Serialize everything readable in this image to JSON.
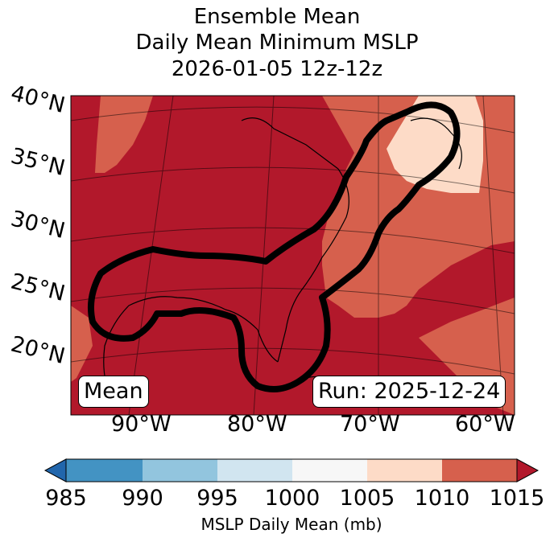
{
  "title": {
    "line1": "Ensemble Mean",
    "line2": "Daily Mean Minimum MSLP",
    "line3": "2026-01-05 12z-12z"
  },
  "map": {
    "lat_labels": [
      "40°N",
      "35°N",
      "30°N",
      "25°N",
      "20°N"
    ],
    "lon_labels": [
      "90°W",
      "80°W",
      "70°W",
      "60°W"
    ],
    "mean_label": "Mean",
    "run_label": "Run: 2025-12-24",
    "fill_colors": {
      "dark_red": "#b2182b",
      "medium_red": "#d6604d",
      "light_peach": "#fddbc7",
      "outline": "#000000"
    }
  },
  "colorbar": {
    "ticks": [
      "985",
      "990",
      "995",
      "1000",
      "1005",
      "1010",
      "1015"
    ],
    "label": "MSLP Daily Mean (mb)",
    "colors": [
      "#2166ac",
      "#4393c3",
      "#92c5de",
      "#d1e5f0",
      "#f7f7f7",
      "#fddbc7",
      "#d6604d",
      "#b2182b"
    ]
  }
}
